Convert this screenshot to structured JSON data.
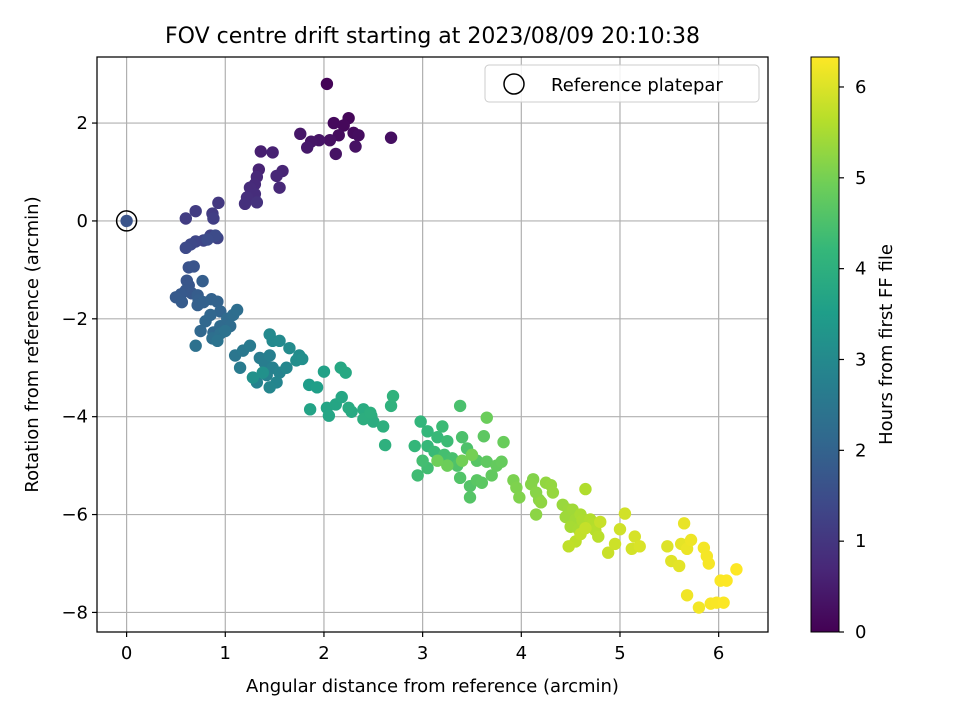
{
  "chart_data": {
    "type": "scatter",
    "title": "FOV centre drift starting at 2023/08/09 20:10:38",
    "xlabel": "Angular distance from reference (arcmin)",
    "ylabel": "Rotation from reference (arcmin)",
    "xlim": [
      -0.3,
      6.5
    ],
    "ylim": [
      -8.4,
      3.35
    ],
    "xticks": [
      0,
      1,
      2,
      3,
      4,
      5,
      6
    ],
    "yticks": [
      2,
      0,
      -2,
      -4,
      -6,
      -8
    ],
    "grid": true,
    "legend": {
      "position": "top-right",
      "entries": [
        "Reference platepar"
      ]
    },
    "reference_point": {
      "x": 0,
      "y": 0,
      "label": "Reference platepar"
    },
    "colorbar": {
      "label": "Hours from first FF file",
      "range": [
        0,
        6.33
      ],
      "ticks": [
        0,
        1,
        2,
        3,
        4,
        5,
        6
      ],
      "colormap": [
        "#440154",
        "#482878",
        "#3e4989",
        "#31688e",
        "#26828e",
        "#1f9e89",
        "#35b779",
        "#6ece58",
        "#b5de2b",
        "#fde725"
      ]
    },
    "series": [
      {
        "points": [
          [
            2.03,
            2.8,
            0.05
          ],
          [
            2.25,
            2.1,
            0.1
          ],
          [
            2.2,
            1.95,
            0.12
          ],
          [
            2.1,
            2.0,
            0.15
          ],
          [
            2.3,
            1.8,
            0.18
          ],
          [
            2.15,
            1.75,
            0.2
          ],
          [
            2.35,
            1.75,
            0.22
          ],
          [
            2.68,
            1.7,
            0.25
          ],
          [
            2.06,
            1.65,
            0.27
          ],
          [
            2.32,
            1.52,
            0.3
          ],
          [
            2.12,
            1.37,
            0.32
          ],
          [
            1.95,
            1.65,
            0.35
          ],
          [
            1.87,
            1.62,
            0.38
          ],
          [
            1.76,
            1.78,
            0.4
          ],
          [
            1.83,
            1.5,
            0.43
          ],
          [
            1.36,
            1.42,
            0.55
          ],
          [
            1.48,
            1.4,
            0.58
          ],
          [
            1.34,
            1.05,
            0.62
          ],
          [
            1.58,
            1.02,
            0.65
          ],
          [
            1.52,
            0.92,
            0.68
          ],
          [
            1.32,
            0.9,
            0.7
          ],
          [
            1.55,
            0.68,
            0.72
          ],
          [
            1.3,
            0.75,
            0.75
          ],
          [
            1.25,
            0.68,
            0.78
          ],
          [
            1.3,
            0.55,
            0.82
          ],
          [
            1.22,
            0.48,
            0.85
          ],
          [
            1.2,
            0.35,
            0.88
          ],
          [
            1.32,
            0.38,
            0.92
          ],
          [
            0.93,
            0.37,
            1.05
          ],
          [
            0.87,
            0.15,
            1.1
          ],
          [
            0.7,
            0.2,
            1.12
          ],
          [
            0.6,
            0.05,
            1.15
          ],
          [
            0.88,
            0.05,
            1.18
          ],
          [
            0.85,
            -0.3,
            1.25
          ],
          [
            0.92,
            -0.35,
            1.28
          ],
          [
            0.78,
            -0.4,
            1.32
          ],
          [
            0.7,
            -0.42,
            1.35
          ],
          [
            0.65,
            -0.48,
            1.38
          ],
          [
            0.6,
            -0.55,
            1.42
          ],
          [
            0.9,
            -0.3,
            1.45
          ],
          [
            0.82,
            -0.38,
            1.48
          ],
          [
            0.63,
            -0.95,
            1.62
          ],
          [
            0.68,
            -0.93,
            1.65
          ],
          [
            0.61,
            -1.22,
            1.68
          ],
          [
            0.63,
            -1.32,
            1.7
          ],
          [
            0.6,
            -1.42,
            1.72
          ],
          [
            0.66,
            -1.48,
            1.75
          ],
          [
            0.55,
            -1.5,
            1.78
          ],
          [
            0.5,
            -1.56,
            1.8
          ],
          [
            0.56,
            -1.66,
            1.82
          ],
          [
            0.72,
            -1.52,
            1.85
          ],
          [
            0.77,
            -1.23,
            1.88
          ],
          [
            0.73,
            -1.62,
            1.9
          ],
          [
            0.72,
            -1.72,
            1.92
          ],
          [
            0.78,
            -1.66,
            1.95
          ],
          [
            0.86,
            -1.6,
            1.98
          ],
          [
            0.92,
            -1.65,
            2.0
          ],
          [
            0.95,
            -1.85,
            2.05
          ],
          [
            0.85,
            -1.92,
            2.08
          ],
          [
            0.8,
            -2.05,
            2.1
          ],
          [
            0.75,
            -2.25,
            2.12
          ],
          [
            0.88,
            -2.28,
            2.15
          ],
          [
            0.95,
            -2.15,
            2.18
          ],
          [
            1.02,
            -2.0,
            2.2
          ],
          [
            1.05,
            -2.15,
            2.22
          ],
          [
            1.08,
            -1.92,
            2.25
          ],
          [
            1.12,
            -1.82,
            2.28
          ],
          [
            0.87,
            -2.4,
            2.3
          ],
          [
            0.95,
            -2.3,
            2.32
          ],
          [
            0.7,
            -2.55,
            2.35
          ],
          [
            1.0,
            -2.25,
            2.38
          ],
          [
            0.92,
            -2.45,
            2.4
          ],
          [
            1.1,
            -2.75,
            2.5
          ],
          [
            1.18,
            -2.65,
            2.55
          ],
          [
            1.25,
            -2.55,
            2.6
          ],
          [
            1.15,
            -3.0,
            2.62
          ],
          [
            1.35,
            -2.8,
            2.65
          ],
          [
            1.4,
            -2.9,
            2.68
          ],
          [
            1.45,
            -2.75,
            2.72
          ],
          [
            1.48,
            -3.0,
            2.75
          ],
          [
            1.42,
            -3.15,
            2.78
          ],
          [
            1.32,
            -3.3,
            2.82
          ],
          [
            1.55,
            -3.1,
            2.85
          ],
          [
            1.52,
            -3.3,
            2.88
          ],
          [
            1.45,
            -3.4,
            2.92
          ],
          [
            1.62,
            -3.0,
            2.95
          ],
          [
            1.48,
            -2.45,
            2.98
          ],
          [
            1.45,
            -2.32,
            3.0
          ],
          [
            1.55,
            -2.45,
            3.02
          ],
          [
            1.65,
            -2.6,
            3.05
          ],
          [
            1.75,
            -2.75,
            3.1
          ],
          [
            1.72,
            -2.85,
            3.12
          ],
          [
            1.78,
            -2.82,
            3.15
          ],
          [
            1.28,
            -3.2,
            3.18
          ],
          [
            1.38,
            -3.1,
            3.2
          ],
          [
            1.85,
            -3.35,
            3.5
          ],
          [
            1.93,
            -3.4,
            3.55
          ],
          [
            2.0,
            -3.08,
            3.6
          ],
          [
            1.86,
            -3.85,
            3.65
          ],
          [
            2.03,
            -3.82,
            3.68
          ],
          [
            2.05,
            -3.98,
            3.7
          ],
          [
            2.12,
            -3.75,
            3.72
          ],
          [
            2.18,
            -3.6,
            3.75
          ],
          [
            2.17,
            -3.0,
            3.78
          ],
          [
            2.22,
            -3.1,
            3.8
          ],
          [
            2.28,
            -3.9,
            3.82
          ],
          [
            2.25,
            -3.82,
            3.85
          ],
          [
            2.4,
            -3.85,
            3.88
          ],
          [
            2.48,
            -3.98,
            3.9
          ],
          [
            2.5,
            -4.1,
            3.92
          ],
          [
            2.4,
            -4.05,
            3.95
          ],
          [
            2.47,
            -3.92,
            3.98
          ],
          [
            2.6,
            -4.2,
            4.0
          ],
          [
            2.62,
            -4.58,
            4.02
          ],
          [
            2.68,
            -3.78,
            4.05
          ],
          [
            2.7,
            -3.58,
            4.08
          ],
          [
            2.98,
            -4.1,
            4.15
          ],
          [
            3.05,
            -4.3,
            4.18
          ],
          [
            2.92,
            -4.6,
            4.2
          ],
          [
            3.05,
            -4.6,
            4.22
          ],
          [
            3.15,
            -4.42,
            4.25
          ],
          [
            3.12,
            -4.72,
            4.28
          ],
          [
            3.2,
            -4.2,
            4.3
          ],
          [
            3.25,
            -4.5,
            4.32
          ],
          [
            2.95,
            -5.2,
            4.35
          ],
          [
            3.05,
            -5.05,
            4.38
          ],
          [
            3.0,
            -4.9,
            4.4
          ],
          [
            3.22,
            -4.78,
            4.42
          ],
          [
            3.3,
            -4.85,
            4.45
          ],
          [
            3.38,
            -3.78,
            4.48
          ],
          [
            3.4,
            -4.42,
            4.5
          ],
          [
            3.45,
            -4.65,
            4.52
          ],
          [
            3.35,
            -5.0,
            4.55
          ],
          [
            3.38,
            -5.25,
            4.58
          ],
          [
            3.48,
            -5.42,
            4.6
          ],
          [
            3.48,
            -5.65,
            4.62
          ],
          [
            3.55,
            -4.9,
            4.65
          ],
          [
            3.55,
            -5.3,
            4.68
          ],
          [
            3.6,
            -5.35,
            4.7
          ],
          [
            3.62,
            -4.4,
            4.72
          ],
          [
            3.65,
            -4.92,
            4.75
          ],
          [
            3.7,
            -5.2,
            4.78
          ],
          [
            3.75,
            -5.0,
            4.8
          ],
          [
            3.8,
            -4.92,
            4.82
          ],
          [
            3.82,
            -4.52,
            4.85
          ],
          [
            3.65,
            -4.02,
            4.88
          ],
          [
            3.25,
            -5.0,
            4.9
          ],
          [
            3.15,
            -4.9,
            4.92
          ],
          [
            3.4,
            -4.9,
            4.95
          ],
          [
            3.5,
            -4.78,
            4.98
          ],
          [
            3.92,
            -5.3,
            5.05
          ],
          [
            3.95,
            -5.45,
            5.08
          ],
          [
            3.98,
            -5.65,
            5.1
          ],
          [
            4.12,
            -5.28,
            5.12
          ],
          [
            4.1,
            -5.38,
            5.15
          ],
          [
            4.15,
            -5.55,
            5.18
          ],
          [
            4.18,
            -5.7,
            5.2
          ],
          [
            4.15,
            -6.0,
            5.22
          ],
          [
            4.2,
            -5.75,
            5.25
          ],
          [
            4.25,
            -5.35,
            5.28
          ],
          [
            4.3,
            -5.4,
            5.3
          ],
          [
            4.32,
            -5.55,
            5.32
          ],
          [
            4.42,
            -5.8,
            5.35
          ],
          [
            4.48,
            -5.9,
            5.38
          ],
          [
            4.45,
            -6.05,
            5.4
          ],
          [
            4.52,
            -5.9,
            5.42
          ],
          [
            4.55,
            -6.1,
            5.45
          ],
          [
            4.5,
            -6.25,
            5.48
          ],
          [
            4.58,
            -6.3,
            5.5
          ],
          [
            4.6,
            -6.0,
            5.52
          ],
          [
            4.62,
            -6.12,
            5.55
          ],
          [
            4.65,
            -5.48,
            5.58
          ],
          [
            4.7,
            -6.1,
            5.6
          ],
          [
            4.72,
            -6.2,
            5.62
          ],
          [
            4.75,
            -6.32,
            5.65
          ],
          [
            4.78,
            -6.45,
            5.68
          ],
          [
            4.55,
            -6.55,
            5.7
          ],
          [
            4.48,
            -6.65,
            5.72
          ],
          [
            4.6,
            -6.4,
            5.75
          ],
          [
            4.65,
            -6.28,
            5.78
          ],
          [
            4.8,
            -6.15,
            5.8
          ],
          [
            4.88,
            -6.78,
            5.82
          ],
          [
            4.95,
            -6.6,
            5.85
          ],
          [
            5.0,
            -6.3,
            5.88
          ],
          [
            5.05,
            -5.98,
            5.9
          ],
          [
            5.12,
            -6.7,
            5.92
          ],
          [
            5.15,
            -6.45,
            5.95
          ],
          [
            5.2,
            -6.65,
            5.98
          ],
          [
            5.48,
            -6.65,
            6.02
          ],
          [
            5.52,
            -6.95,
            6.05
          ],
          [
            5.6,
            -7.05,
            6.08
          ],
          [
            5.62,
            -6.6,
            6.1
          ],
          [
            5.65,
            -6.18,
            6.12
          ],
          [
            5.68,
            -6.7,
            6.15
          ],
          [
            5.72,
            -6.52,
            6.18
          ],
          [
            5.68,
            -7.65,
            6.2
          ],
          [
            5.8,
            -7.9,
            6.22
          ],
          [
            5.85,
            -6.68,
            6.24
          ],
          [
            5.88,
            -6.85,
            6.25
          ],
          [
            5.9,
            -7.0,
            6.26
          ],
          [
            5.92,
            -7.82,
            6.28
          ],
          [
            5.98,
            -7.8,
            6.29
          ],
          [
            6.02,
            -7.35,
            6.3
          ],
          [
            6.05,
            -7.8,
            6.31
          ],
          [
            6.08,
            -7.35,
            6.32
          ],
          [
            6.18,
            -7.12,
            6.33
          ]
        ]
      }
    ]
  }
}
